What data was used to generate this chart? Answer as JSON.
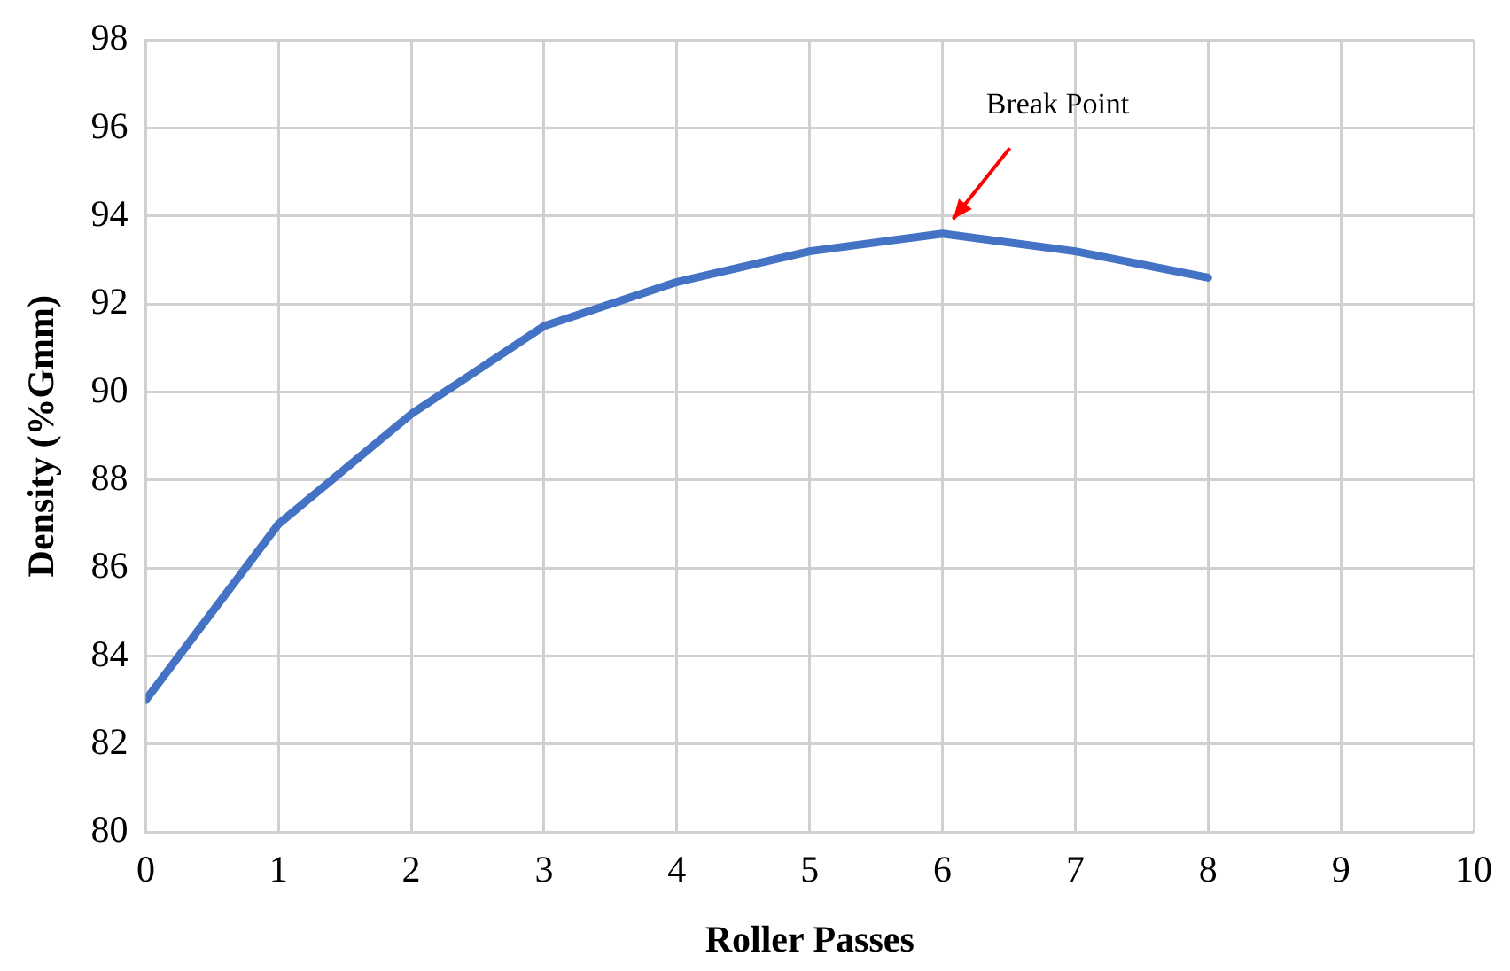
{
  "chart_data": {
    "type": "line",
    "xlabel": "Roller Passes",
    "ylabel": "Density (%Gmm)",
    "x": [
      0,
      1,
      2,
      3,
      4,
      5,
      6,
      7,
      8
    ],
    "series": [
      {
        "color": "#4472c4",
        "values": [
          83,
          87,
          89.5,
          91.5,
          92.5,
          93.2,
          93.6,
          93.2,
          92.6
        ]
      }
    ],
    "xlim": [
      0,
      10
    ],
    "xticks": [
      0,
      1,
      2,
      3,
      4,
      5,
      6,
      7,
      8,
      9,
      10
    ],
    "ylim": [
      80,
      98
    ],
    "yticks": [
      80,
      82,
      84,
      86,
      88,
      90,
      92,
      94,
      96,
      98
    ],
    "grid": true,
    "legend": false,
    "marker": "none",
    "line_style": "solid",
    "annotations": [
      "Break Point"
    ]
  }
}
